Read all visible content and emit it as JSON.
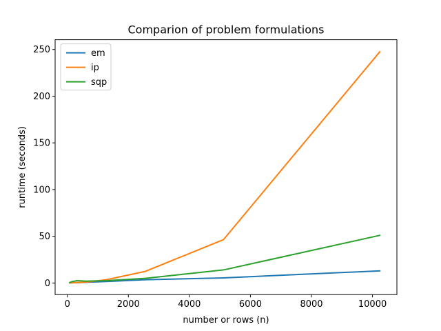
{
  "chart_data": {
    "type": "line",
    "title": "Comparion of problem formulations",
    "xlabel": "number or rows (n)",
    "ylabel": "runtime (seconds)",
    "xlim": [
      -400,
      10800
    ],
    "ylim": [
      -12.4,
      260.4
    ],
    "xticks": [
      0,
      2000,
      4000,
      6000,
      8000,
      10000
    ],
    "yticks": [
      0,
      50,
      100,
      150,
      200,
      250
    ],
    "grid": false,
    "legend_position": "top-left",
    "series": [
      {
        "name": "em",
        "color": "#1f77b4",
        "x": [
          80,
          160,
          320,
          640,
          1280,
          2560,
          5120,
          10240
        ],
        "y": [
          0.1,
          0.2,
          0.4,
          0.8,
          1.6,
          3.5,
          5.5,
          13.0
        ]
      },
      {
        "name": "ip",
        "color": "#ff7f0e",
        "x": [
          80,
          160,
          320,
          640,
          1280,
          2560,
          5120,
          10240
        ],
        "y": [
          0.1,
          0.2,
          0.5,
          1.0,
          3.5,
          12.5,
          46.5,
          247.5
        ]
      },
      {
        "name": "sqp",
        "color": "#2ca02c",
        "x": [
          80,
          160,
          320,
          640,
          1280,
          2560,
          5120,
          10240
        ],
        "y": [
          0.5,
          1.5,
          2.5,
          2.0,
          2.5,
          5.0,
          14.0,
          51.0
        ]
      }
    ]
  }
}
